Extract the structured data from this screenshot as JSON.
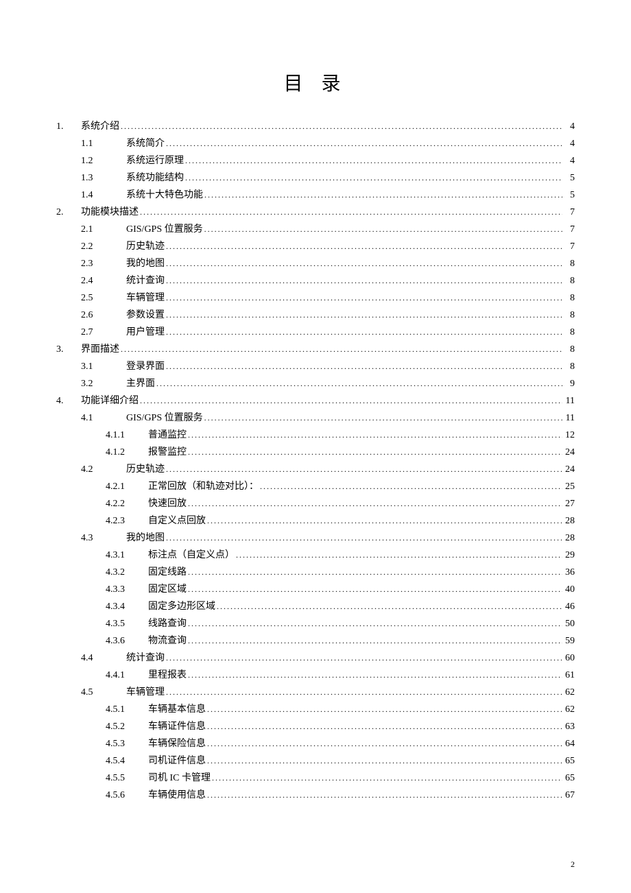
{
  "title": "目 录",
  "page_number": "2",
  "colors": {
    "text": "#000000",
    "background": "#ffffff"
  },
  "typography": {
    "title_fontsize": 28,
    "body_fontsize": 14,
    "font_family": "SimSun"
  },
  "entries": [
    {
      "level": 1,
      "num": "1.",
      "label": "系统介绍",
      "page": "4"
    },
    {
      "level": 2,
      "num": "1.1",
      "label": "系统简介",
      "page": "4"
    },
    {
      "level": 2,
      "num": "1.2",
      "label": "系统运行原理",
      "page": "4"
    },
    {
      "level": 2,
      "num": "1.3",
      "label": "系统功能结构",
      "page": "5"
    },
    {
      "level": 2,
      "num": "1.4",
      "label": "系统十大特色功能",
      "page": "5"
    },
    {
      "level": 1,
      "num": "2.",
      "label": "功能模块描述",
      "page": "7"
    },
    {
      "level": 2,
      "num": "2.1",
      "label": "GIS/GPS 位置服务",
      "page": "7"
    },
    {
      "level": 2,
      "num": "2.2",
      "label": "历史轨迹",
      "page": "7"
    },
    {
      "level": 2,
      "num": "2.3",
      "label": "我的地图",
      "page": "8"
    },
    {
      "level": 2,
      "num": "2.4",
      "label": "统计查询",
      "page": "8"
    },
    {
      "level": 2,
      "num": "2.5",
      "label": "车辆管理",
      "page": "8"
    },
    {
      "level": 2,
      "num": "2.6",
      "label": "参数设置",
      "page": "8"
    },
    {
      "level": 2,
      "num": "2.7",
      "label": "用户管理",
      "page": "8"
    },
    {
      "level": 1,
      "num": "3.",
      "label": "界面描述",
      "page": "8"
    },
    {
      "level": 2,
      "num": "3.1",
      "label": "登录界面",
      "page": "8"
    },
    {
      "level": 2,
      "num": "3.2",
      "label": "主界面",
      "page": "9"
    },
    {
      "level": 1,
      "num": "4.",
      "label": "功能详细介绍",
      "page": "11"
    },
    {
      "level": 2,
      "num": "4.1",
      "label": "GIS/GPS 位置服务",
      "page": "11"
    },
    {
      "level": 3,
      "num": "4.1.1",
      "label": "普通监控",
      "page": "12"
    },
    {
      "level": 3,
      "num": "4.1.2",
      "label": "报警监控",
      "page": "24"
    },
    {
      "level": 2,
      "num": "4.2",
      "label": "历史轨迹",
      "page": "24"
    },
    {
      "level": 3,
      "num": "4.2.1",
      "label": "正常回放（和轨迹对比）：",
      "page": "25"
    },
    {
      "level": 3,
      "num": "4.2.2",
      "label": "快速回放",
      "page": "27"
    },
    {
      "level": 3,
      "num": "4.2.3",
      "label": "自定义点回放",
      "page": "28"
    },
    {
      "level": 2,
      "num": "4.3",
      "label": "我的地图",
      "page": "28"
    },
    {
      "level": 3,
      "num": "4.3.1",
      "label": "标注点（自定义点）",
      "page": "29"
    },
    {
      "level": 3,
      "num": "4.3.2",
      "label": "固定线路",
      "page": "36"
    },
    {
      "level": 3,
      "num": "4.3.3",
      "label": "固定区域",
      "page": "40"
    },
    {
      "level": 3,
      "num": "4.3.4",
      "label": "固定多边形区域",
      "page": "46"
    },
    {
      "level": 3,
      "num": "4.3.5",
      "label": "线路查询",
      "page": "50"
    },
    {
      "level": 3,
      "num": "4.3.6",
      "label": "物流查询",
      "page": "59"
    },
    {
      "level": 2,
      "num": "4.4",
      "label": "统计查询",
      "page": "60"
    },
    {
      "level": 3,
      "num": "4.4.1",
      "label": "里程报表",
      "page": "61"
    },
    {
      "level": 2,
      "num": "4.5",
      "label": "车辆管理",
      "page": "62"
    },
    {
      "level": 3,
      "num": "4.5.1",
      "label": "车辆基本信息",
      "page": "62"
    },
    {
      "level": 3,
      "num": "4.5.2",
      "label": "车辆证件信息",
      "page": "63"
    },
    {
      "level": 3,
      "num": "4.5.3",
      "label": "车辆保险信息",
      "page": "64"
    },
    {
      "level": 3,
      "num": "4.5.4",
      "label": "司机证件信息",
      "page": "65"
    },
    {
      "level": 3,
      "num": "4.5.5",
      "label": "司机 IC 卡管理",
      "page": "65"
    },
    {
      "level": 3,
      "num": "4.5.6",
      "label": "车辆使用信息",
      "page": "67"
    }
  ]
}
